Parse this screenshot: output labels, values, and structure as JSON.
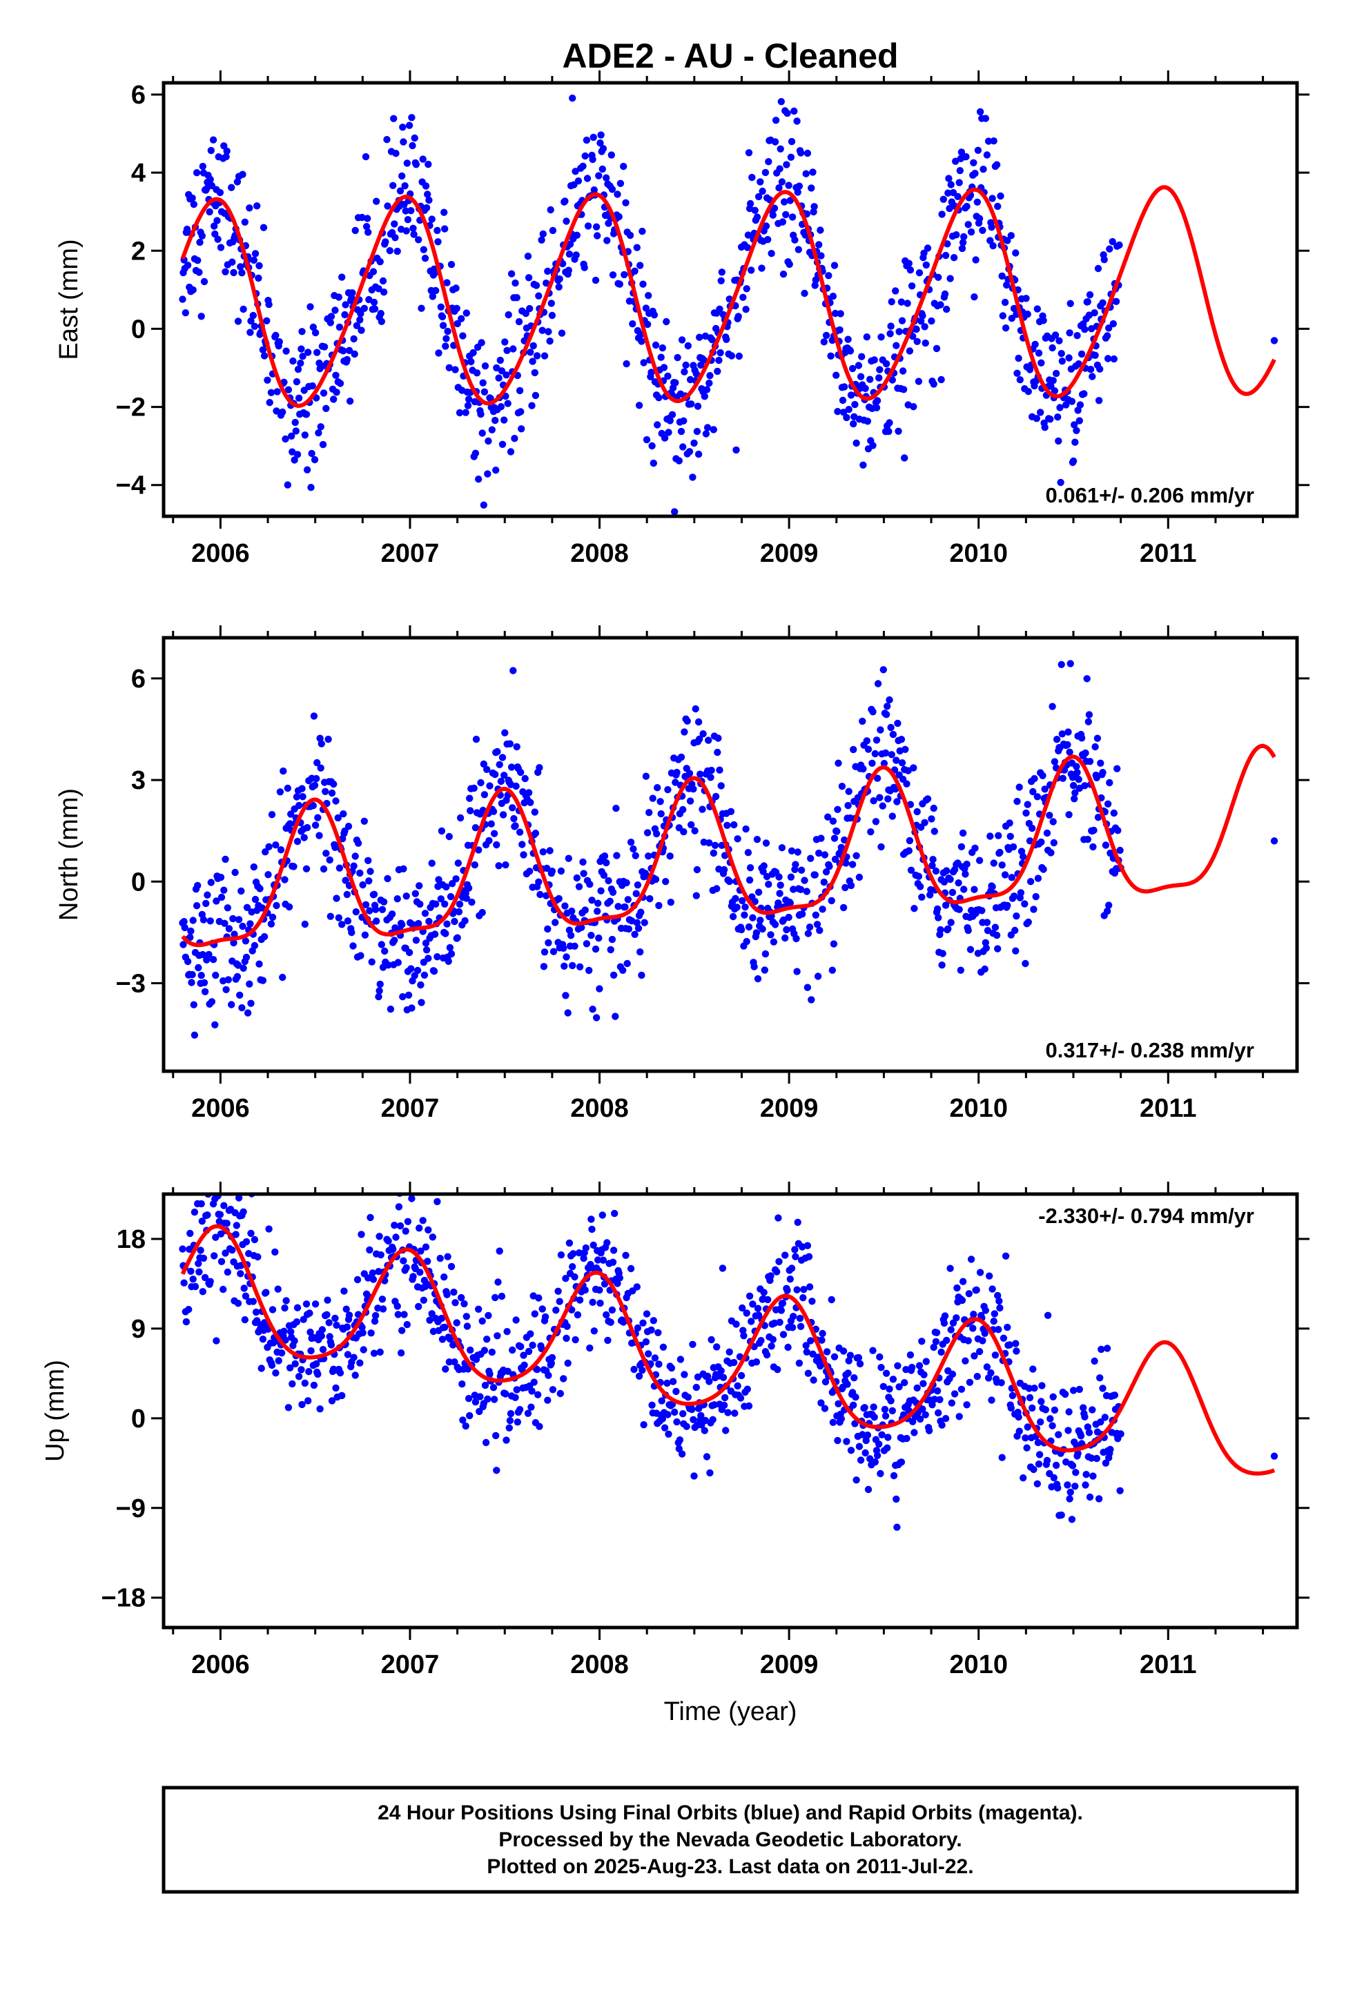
{
  "title": "ADE2  - AU - Cleaned",
  "xlabel": "Time (year)",
  "colors": {
    "final_points": "#0000ff",
    "model_curve": "#ff0000",
    "frame": "#000000"
  },
  "chart_data": [
    {
      "type": "scatter",
      "component": "east",
      "ylabel": "East (mm)",
      "xlim": [
        2005.7,
        2011.68
      ],
      "ylim": [
        -4.8,
        6.3
      ],
      "yticks": [
        -4,
        -2,
        0,
        2,
        4,
        6
      ],
      "xticks": [
        2006,
        2007,
        2008,
        2009,
        2010,
        2011
      ],
      "rate_text": "0.061+/- 0.206 mm/yr",
      "rate_position": "bottom-right",
      "data_range": [
        2005.8,
        2010.75
      ],
      "extra_point": [
        2011.56,
        -0.3
      ],
      "model": {
        "offset": 0.7,
        "trend": 0.061,
        "annual_amp": 2.6,
        "annual_peak": 2006.95,
        "semi_amp": 0.3,
        "semi_peak": 2006.05
      },
      "scatter_sd": 1.0
    },
    {
      "type": "scatter",
      "component": "north",
      "ylabel": "North (mm)",
      "xlim": [
        2005.7,
        2011.68
      ],
      "ylim": [
        -5.6,
        7.2
      ],
      "yticks": [
        -3,
        0,
        3,
        6
      ],
      "xticks": [
        2006,
        2007,
        2008,
        2009,
        2010,
        2011
      ],
      "rate_text": "0.317+/- 0.238 mm/yr",
      "rate_position": "bottom-right",
      "data_range": [
        2005.8,
        2010.75
      ],
      "extra_point": [
        2011.56,
        1.2
      ],
      "model": {
        "offset": 0.3,
        "trend": 0.317,
        "annual_amp": 2.0,
        "annual_peak": 2006.49,
        "semi_amp": 0.6,
        "semi_peak": 2006.5
      },
      "scatter_sd": 1.1
    },
    {
      "type": "scatter",
      "component": "up",
      "ylabel": "Up (mm)",
      "xlim": [
        2005.7,
        2011.68
      ],
      "ylim": [
        -21,
        22.5
      ],
      "yticks": [
        -18,
        -9,
        0,
        9,
        18
      ],
      "xticks": [
        2006,
        2007,
        2008,
        2009,
        2010,
        2011
      ],
      "rate_text": "-2.330+/- 0.794 mm/yr",
      "rate_position": "top-right",
      "data_range": [
        2005.8,
        2010.75
      ],
      "extra_point": [
        2011.56,
        -3.8
      ],
      "model": {
        "offset": 7.6,
        "trend": -2.33,
        "annual_amp": 6.0,
        "annual_peak": 2006.98,
        "semi_amp": 1.0,
        "semi_peak": 2006.0
      },
      "scatter_sd": 3.4
    }
  ],
  "footer": {
    "line1": "24 Hour Positions Using Final Orbits (blue) and Rapid Orbits (magenta).",
    "line2": "Processed by the Nevada Geodetic Laboratory.",
    "line3": "Plotted on 2025-Aug-23. Last data on 2011-Jul-22."
  }
}
